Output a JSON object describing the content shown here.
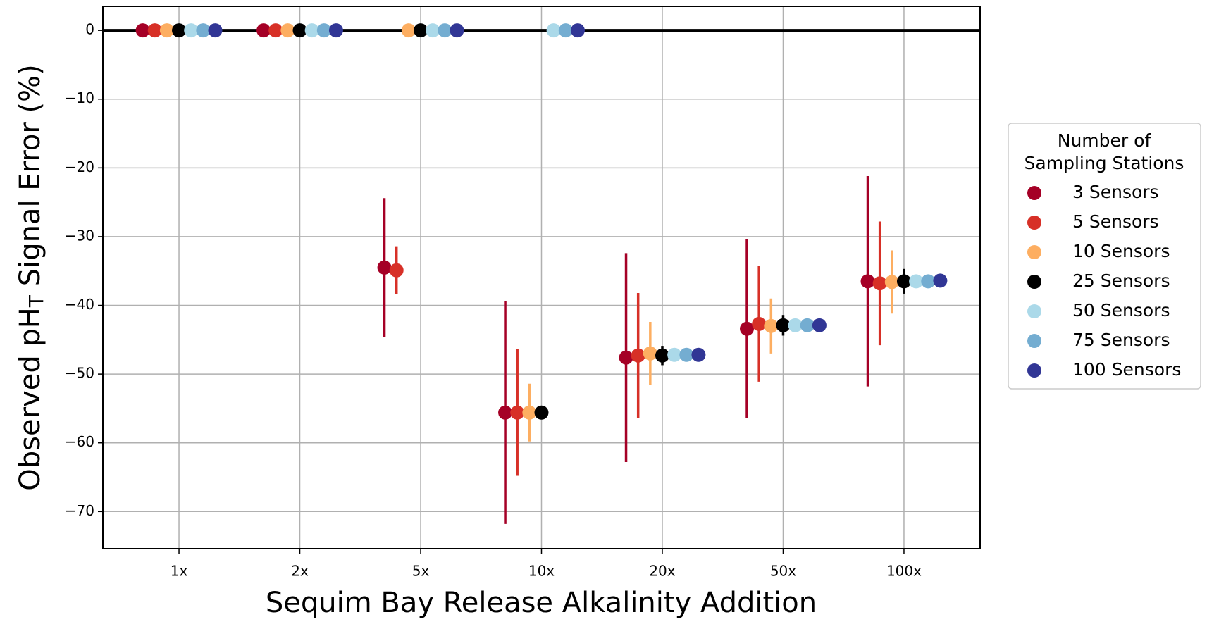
{
  "chart_data": {
    "type": "errorbar",
    "xlabel": "Sequim Bay Release Alkalinity Addition",
    "ylabel": [
      "Observed pH",
      "T",
      " Signal Error (%)"
    ],
    "legend_title": [
      "Number of",
      "Sampling Stations"
    ],
    "legend_position": "right",
    "grid": true,
    "reference_line": 0,
    "categories": [
      "1x",
      "2x",
      "5x",
      "10x",
      "20x",
      "50x",
      "100x"
    ],
    "ylim": [
      -75.4,
      3.5
    ],
    "yticks": [
      {
        "value": -70,
        "label": "−70"
      },
      {
        "value": -60,
        "label": "−60"
      },
      {
        "value": -50,
        "label": "−50"
      },
      {
        "value": -40,
        "label": "−40"
      },
      {
        "value": -30,
        "label": "−30"
      },
      {
        "value": -20,
        "label": "−20"
      },
      {
        "value": -10,
        "label": "−10"
      },
      0
    ],
    "series": [
      {
        "name": "3 Sensors",
        "color": "#a50026",
        "values": [
          0,
          0,
          -34.5,
          -55.6,
          -47.6,
          -43.4,
          -36.5
        ],
        "errors": [
          0,
          0,
          10.1,
          16.2,
          15.2,
          13,
          15.3
        ]
      },
      {
        "name": "5 Sensors",
        "color": "#d73027",
        "values": [
          0,
          0,
          -34.9,
          -55.6,
          -47.3,
          -42.7,
          -36.8
        ],
        "errors": [
          0,
          0,
          3.5,
          9.2,
          9.1,
          8.4,
          9
        ]
      },
      {
        "name": "10 Sensors",
        "color": "#fdae61",
        "values": [
          0,
          0,
          0,
          -55.6,
          -47,
          -43,
          -36.6
        ],
        "errors": [
          0,
          0,
          0,
          4.2,
          4.6,
          4,
          4.6
        ]
      },
      {
        "name": "25 Sensors",
        "color": "#000000",
        "values": [
          0,
          0,
          0,
          -55.6,
          -47.3,
          -42.9,
          -36.5
        ],
        "errors": [
          0,
          0,
          0,
          0.5,
          1.4,
          1.5,
          1.8
        ]
      },
      {
        "name": "50 Sensors",
        "color": "#abd9e9",
        "values": [
          0,
          0,
          0,
          0,
          -47.2,
          -42.9,
          -36.5
        ],
        "errors": [
          0,
          0,
          0,
          0,
          0,
          0,
          0
        ]
      },
      {
        "name": "75 Sensors",
        "color": "#74add1",
        "values": [
          0,
          0,
          0,
          0,
          -47.2,
          -42.9,
          -36.5
        ],
        "errors": [
          0,
          0,
          0,
          0,
          0,
          0,
          0
        ]
      },
      {
        "name": "100 Sensors",
        "color": "#313695",
        "values": [
          0,
          0,
          0,
          0,
          -47.2,
          -42.9,
          -36.4
        ],
        "errors": [
          0,
          0,
          0,
          0,
          0,
          0,
          0
        ]
      }
    ]
  }
}
